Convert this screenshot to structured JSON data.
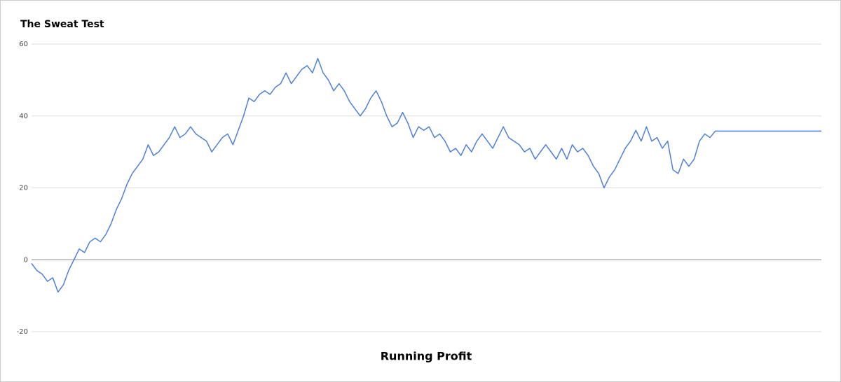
{
  "chart_data": {
    "type": "line",
    "title": "The Sweat Test",
    "x_label": "Running Profit",
    "color": "#4f7fdb",
    "values": [
      -1,
      -3,
      -4,
      -6,
      -5,
      -9,
      -7,
      -3,
      0,
      3,
      2,
      5,
      6,
      5,
      7,
      10,
      14,
      17,
      21,
      24,
      26,
      28,
      32,
      29,
      30,
      32,
      34,
      37,
      34,
      35,
      37,
      35,
      34,
      33,
      30,
      32,
      34,
      35,
      32,
      36,
      40,
      45,
      44,
      46,
      47,
      46,
      48,
      49,
      52,
      49,
      51,
      53,
      54,
      52,
      56,
      52,
      50,
      47,
      49,
      47,
      44,
      42,
      40,
      42,
      45,
      47,
      44,
      40,
      37,
      38,
      41,
      38,
      34,
      37,
      36,
      37,
      34,
      35,
      33,
      30,
      31,
      29,
      32,
      30,
      33,
      35,
      33,
      31,
      34,
      37,
      34,
      33,
      32,
      30,
      31,
      28,
      30,
      32,
      30,
      28,
      31,
      28,
      32,
      30,
      31,
      29,
      26,
      24,
      20,
      23,
      25,
      28,
      31,
      33,
      36,
      33,
      37,
      33,
      34,
      31,
      33,
      25,
      24,
      28,
      26,
      28,
      33,
      35,
      34,
      35.8,
      35.8,
      35.8,
      35.8,
      35.8,
      35.8,
      35.8,
      35.8,
      35.8,
      35.8,
      35.8,
      35.8,
      35.8,
      35.8,
      35.8,
      35.8,
      35.8,
      35.8,
      35.8,
      35.8,
      35.8
    ],
    "ylim": [
      -20,
      60
    ],
    "yticks": [
      -20,
      0,
      20,
      40,
      60
    ],
    "grid": true
  }
}
